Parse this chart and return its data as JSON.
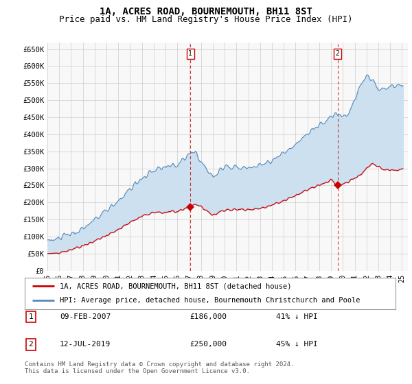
{
  "title": "1A, ACRES ROAD, BOURNEMOUTH, BH11 8ST",
  "subtitle": "Price paid vs. HM Land Registry's House Price Index (HPI)",
  "ylabel_ticks": [
    "£0",
    "£50K",
    "£100K",
    "£150K",
    "£200K",
    "£250K",
    "£300K",
    "£350K",
    "£400K",
    "£450K",
    "£500K",
    "£550K",
    "£600K",
    "£650K"
  ],
  "ytick_vals": [
    0,
    50000,
    100000,
    150000,
    200000,
    250000,
    300000,
    350000,
    400000,
    450000,
    500000,
    550000,
    600000,
    650000
  ],
  "ylim": [
    0,
    670000
  ],
  "xlim_start": 1995.0,
  "xlim_end": 2025.5,
  "hpi_color": "#5588bb",
  "price_color": "#cc0000",
  "fill_color": "#cce0f0",
  "plot_bg": "#f8f8f8",
  "grid_color": "#cccccc",
  "marker1_x": 2007.1,
  "marker1_y": 186000,
  "marker2_x": 2019.55,
  "marker2_y": 250000,
  "legend_line1": "1A, ACRES ROAD, BOURNEMOUTH, BH11 8ST (detached house)",
  "legend_line2": "HPI: Average price, detached house, Bournemouth Christchurch and Poole",
  "table_row1": [
    "1",
    "09-FEB-2007",
    "£186,000",
    "41% ↓ HPI"
  ],
  "table_row2": [
    "2",
    "12-JUL-2019",
    "£250,000",
    "45% ↓ HPI"
  ],
  "footnote": "Contains HM Land Registry data © Crown copyright and database right 2024.\nThis data is licensed under the Open Government Licence v3.0.",
  "title_fontsize": 10,
  "subtitle_fontsize": 9,
  "tick_fontsize": 7.5,
  "legend_fontsize": 7.5,
  "table_fontsize": 8,
  "footnote_fontsize": 6.5
}
